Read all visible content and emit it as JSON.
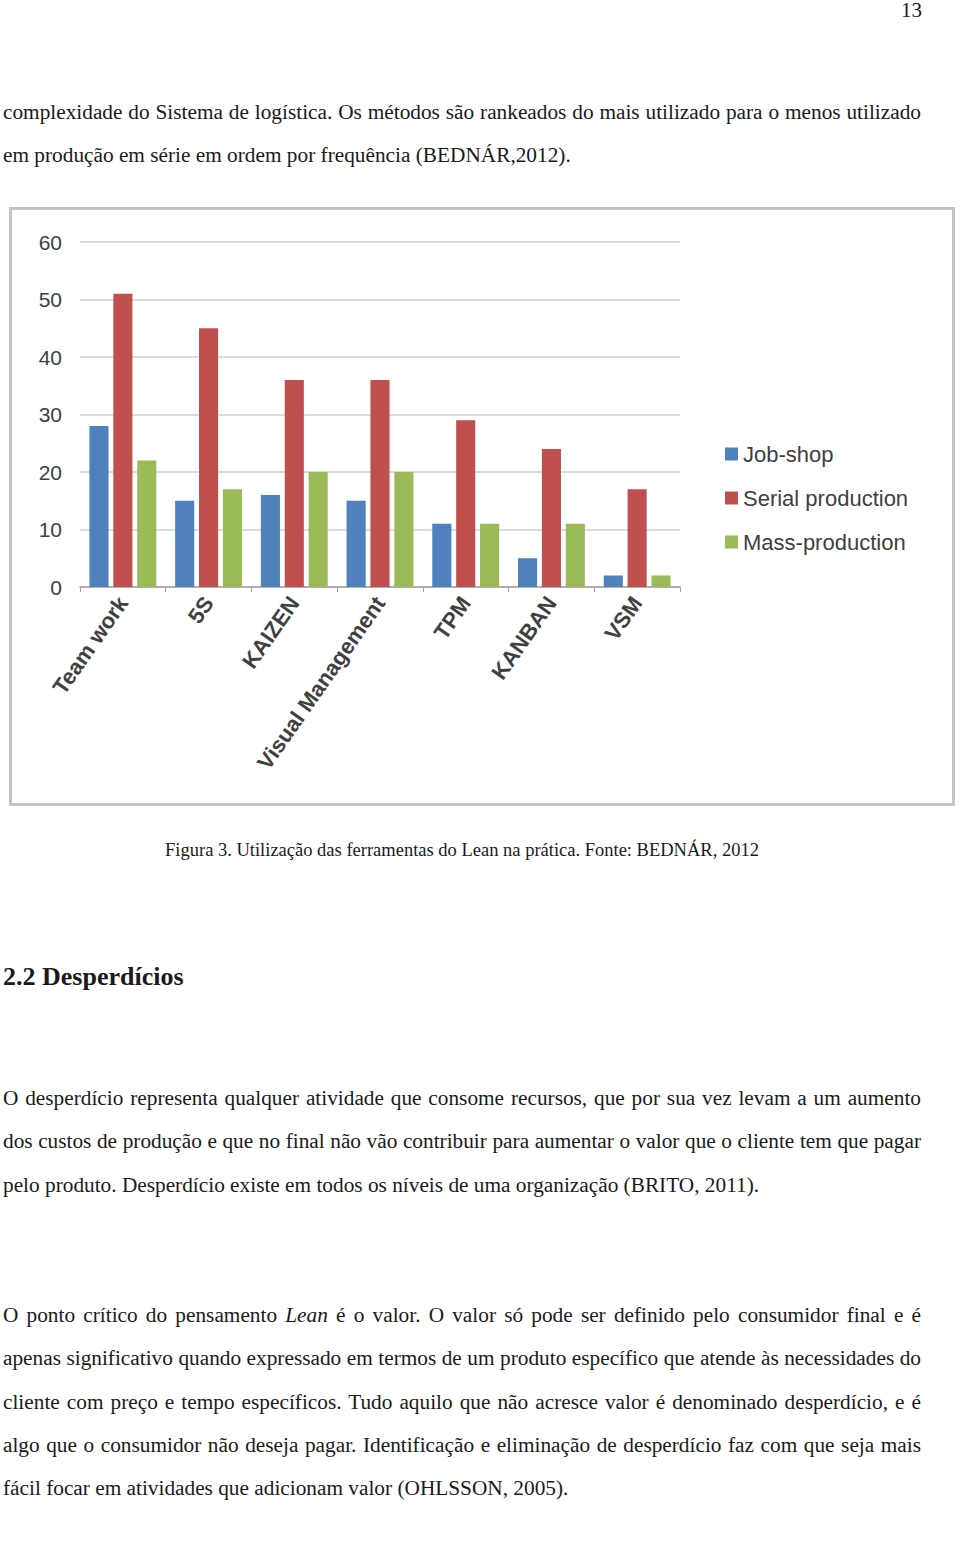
{
  "page_number": "13",
  "paragraphs_top": [
    [
      {
        "text": "complexidade do Sistema de logística. Os métodos são rankeados do mais utilizado para o menos utilizado em produção em série em ordem por frequência (BEDNÁR,2012)."
      }
    ]
  ],
  "chart_data": {
    "type": "bar",
    "categories": [
      "Team work",
      "5S",
      "KAIZEN",
      "Visual Management",
      "TPM",
      "KANBAN",
      "VSM"
    ],
    "series": [
      {
        "name": "Job-shop",
        "color": "#4f81bd",
        "values": [
          28,
          15,
          16,
          15,
          11,
          5,
          2
        ]
      },
      {
        "name": "Serial production",
        "color": "#c0504d",
        "values": [
          51,
          45,
          36,
          36,
          29,
          24,
          17
        ]
      },
      {
        "name": "Mass-production",
        "color": "#9bbb59",
        "values": [
          22,
          17,
          20,
          20,
          11,
          11,
          2
        ]
      }
    ],
    "ylim": [
      0,
      60
    ],
    "yticks": [
      0,
      10,
      20,
      30,
      40,
      50,
      60
    ],
    "grid": true,
    "legend": "right"
  },
  "caption": "Figura 3. Utilização das ferramentas do Lean na prática. Fonte: BEDNÁR, 2012",
  "heading": "2.2 Desperdícios",
  "paragraphs": [
    [
      {
        "text": "O desperdício representa qualquer atividade que consome recursos, que por sua vez levam a um aumento dos custos de produção e que no final não vão contribuir para aumentar o valor que o cliente tem que pagar pelo produto. Desperdício existe em todos os níveis de uma organização (BRITO, 2011)."
      }
    ],
    [
      {
        "text": "O ponto crítico do pensamento "
      },
      {
        "text": "Lean",
        "italic": true
      },
      {
        "text": " é o valor. O valor só pode ser definido pelo consumidor final e é apenas significativo quando expressado em termos de um produto específico que atende às necessidades do cliente com preço e tempo específicos. Tudo aquilo que não acresce valor é denominado desperdício, e é algo que o consumidor não deseja pagar. Identificação e eliminação de desperdício faz com que seja mais fácil focar em atividades que adicionam valor (OHLSSON, 2005)."
      }
    ]
  ]
}
